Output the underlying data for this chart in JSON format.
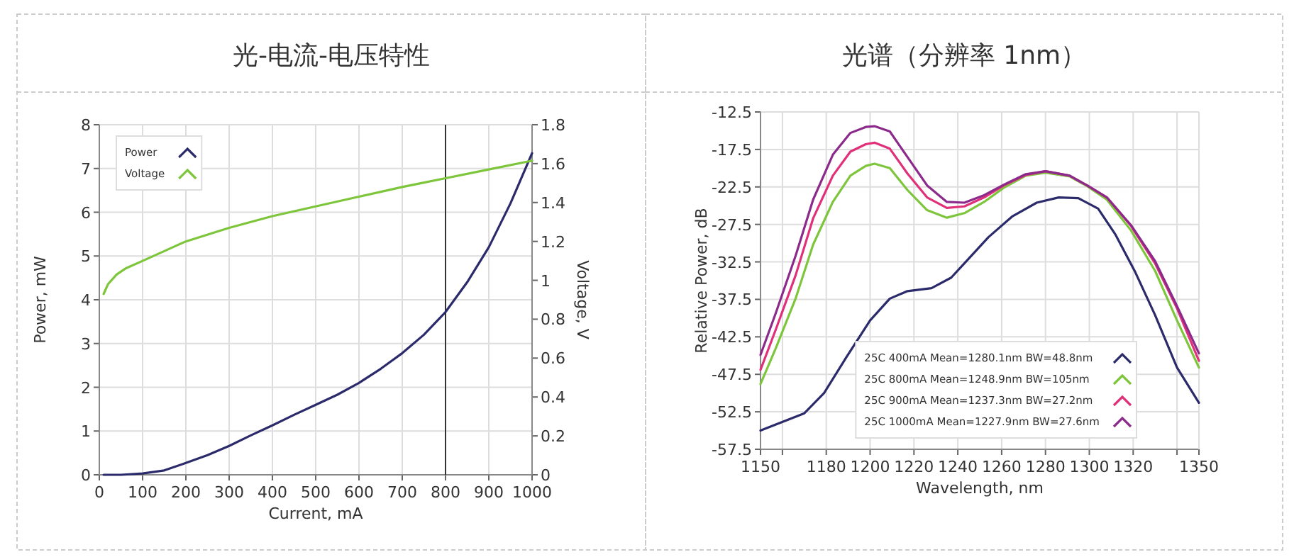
{
  "chart_data": [
    {
      "type": "line",
      "title": "光-电流-电压特性",
      "xlabel": "Current, mA",
      "ylabel": "Power, mW",
      "y2label": "Voltage, V",
      "xlim": [
        0,
        1000
      ],
      "xticks": [
        0,
        100,
        200,
        300,
        400,
        500,
        600,
        700,
        800,
        900,
        1000
      ],
      "ylim": [
        0,
        8
      ],
      "yticks": [
        0,
        1,
        2,
        3,
        4,
        5,
        6,
        7,
        8
      ],
      "y2lim": [
        0,
        1.8
      ],
      "y2ticks": [
        0,
        0.2,
        0.4,
        0.6,
        0.8,
        1,
        1.2,
        1.4,
        1.6,
        1.8
      ],
      "grid": true,
      "legend": "top left",
      "ref_lines": [
        {
          "axis": "x",
          "value": 800,
          "color": "#333333"
        }
      ],
      "series": [
        {
          "name": "Power",
          "color": "#2b2a6b",
          "x": [
            10,
            50,
            100,
            150,
            200,
            250,
            300,
            350,
            400,
            450,
            500,
            550,
            600,
            650,
            700,
            750,
            800,
            850,
            900,
            950,
            1000
          ],
          "values": [
            0,
            0,
            0.03,
            0.1,
            0.27,
            0.45,
            0.66,
            0.9,
            1.13,
            1.37,
            1.6,
            1.83,
            2.1,
            2.42,
            2.78,
            3.2,
            3.72,
            4.4,
            5.2,
            6.2,
            7.35
          ]
        },
        {
          "name": "Voltage",
          "color": "#7dc63c",
          "axis": "y2",
          "x": [
            10,
            20,
            40,
            60,
            100,
            150,
            200,
            300,
            400,
            500,
            600,
            700,
            800,
            900,
            1000
          ],
          "values": [
            0.93,
            0.98,
            1.03,
            1.06,
            1.1,
            1.15,
            1.2,
            1.27,
            1.33,
            1.38,
            1.43,
            1.48,
            1.525,
            1.57,
            1.615
          ]
        }
      ]
    },
    {
      "type": "line",
      "title": "光谱（分辨率  1nm）",
      "xlabel": "Wavelength, nm",
      "ylabel": "Relative Power, dB",
      "xlim": [
        1150,
        1350
      ],
      "xticks": [
        1150,
        {
          "value": 1160,
          "label": null
        },
        1180,
        1200,
        1220,
        1240,
        1260,
        1280,
        1300,
        1320,
        {
          "value": 1340,
          "label": null
        },
        1350
      ],
      "ylim": [
        -57.5,
        -12.5
      ],
      "yticks": [
        -57.5,
        -52.5,
        -47.5,
        -42.5,
        -37.5,
        -32.5,
        -27.5,
        -22.5,
        -17.5,
        -12.5
      ],
      "grid": true,
      "legend": "bottom right",
      "series": [
        {
          "name": "25C 400mA Mean=1280.1nm BW=48.8nm",
          "color": "#2b2a6b",
          "x": [
            1150,
            1170,
            1179,
            1189,
            1200,
            1209,
            1217,
            1228,
            1237,
            1243,
            1254,
            1265,
            1276,
            1286,
            1295,
            1304,
            1312,
            1321,
            1330,
            1340,
            1350
          ],
          "values": [
            -55.0,
            -52.7,
            -50.0,
            -45.3,
            -40.3,
            -37.4,
            -36.4,
            -36.0,
            -34.6,
            -32.7,
            -29.2,
            -26.4,
            -24.6,
            -23.9,
            -24.0,
            -25.4,
            -28.9,
            -33.9,
            -39.6,
            -46.6,
            -51.3
          ]
        },
        {
          "name": "25C 800mA Mean=1248.9nm BW=105nm",
          "color": "#7dc63c",
          "x": [
            1150,
            1157,
            1166,
            1174,
            1183,
            1191,
            1198,
            1202,
            1209,
            1217,
            1226,
            1235,
            1243,
            1252,
            1261,
            1271,
            1280,
            1291,
            1299,
            1308,
            1319,
            1330,
            1340,
            1350
          ],
          "values": [
            -48.8,
            -44.0,
            -37.4,
            -30.2,
            -24.5,
            -21.0,
            -19.7,
            -19.4,
            -20.0,
            -22.9,
            -25.6,
            -26.6,
            -26.0,
            -24.5,
            -22.6,
            -21.0,
            -20.6,
            -21.1,
            -22.4,
            -24.2,
            -28.3,
            -33.7,
            -40.3,
            -46.6
          ]
        },
        {
          "name": "25C 900mA Mean=1237.3nm BW=27.2nm",
          "color": "#e0307a",
          "x": [
            1150,
            1157,
            1166,
            1174,
            1183,
            1191,
            1198,
            1202,
            1209,
            1217,
            1226,
            1235,
            1243,
            1252,
            1261,
            1271,
            1280,
            1291,
            1299,
            1308,
            1319,
            1330,
            1340,
            1350
          ],
          "values": [
            -46.9,
            -41.5,
            -34.3,
            -26.7,
            -21.0,
            -17.8,
            -16.8,
            -16.6,
            -17.4,
            -20.7,
            -23.9,
            -25.3,
            -25.1,
            -23.9,
            -22.3,
            -20.9,
            -20.4,
            -21.0,
            -22.3,
            -23.9,
            -27.7,
            -32.7,
            -38.7,
            -45.7
          ]
        },
        {
          "name": "25C 1000mA Mean=1227.9nm BW=27.6nm",
          "color": "#8b2a8b",
          "x": [
            1150,
            1157,
            1166,
            1174,
            1183,
            1191,
            1198,
            1202,
            1209,
            1217,
            1226,
            1235,
            1243,
            1252,
            1261,
            1271,
            1280,
            1291,
            1299,
            1308,
            1319,
            1330,
            1340,
            1350
          ],
          "values": [
            -44.9,
            -39.3,
            -31.7,
            -24.2,
            -18.2,
            -15.3,
            -14.5,
            -14.4,
            -15.1,
            -18.5,
            -22.3,
            -24.5,
            -24.6,
            -23.6,
            -22.2,
            -20.8,
            -20.4,
            -21.0,
            -22.3,
            -23.9,
            -27.6,
            -32.4,
            -38.4,
            -44.7
          ]
        }
      ]
    }
  ]
}
